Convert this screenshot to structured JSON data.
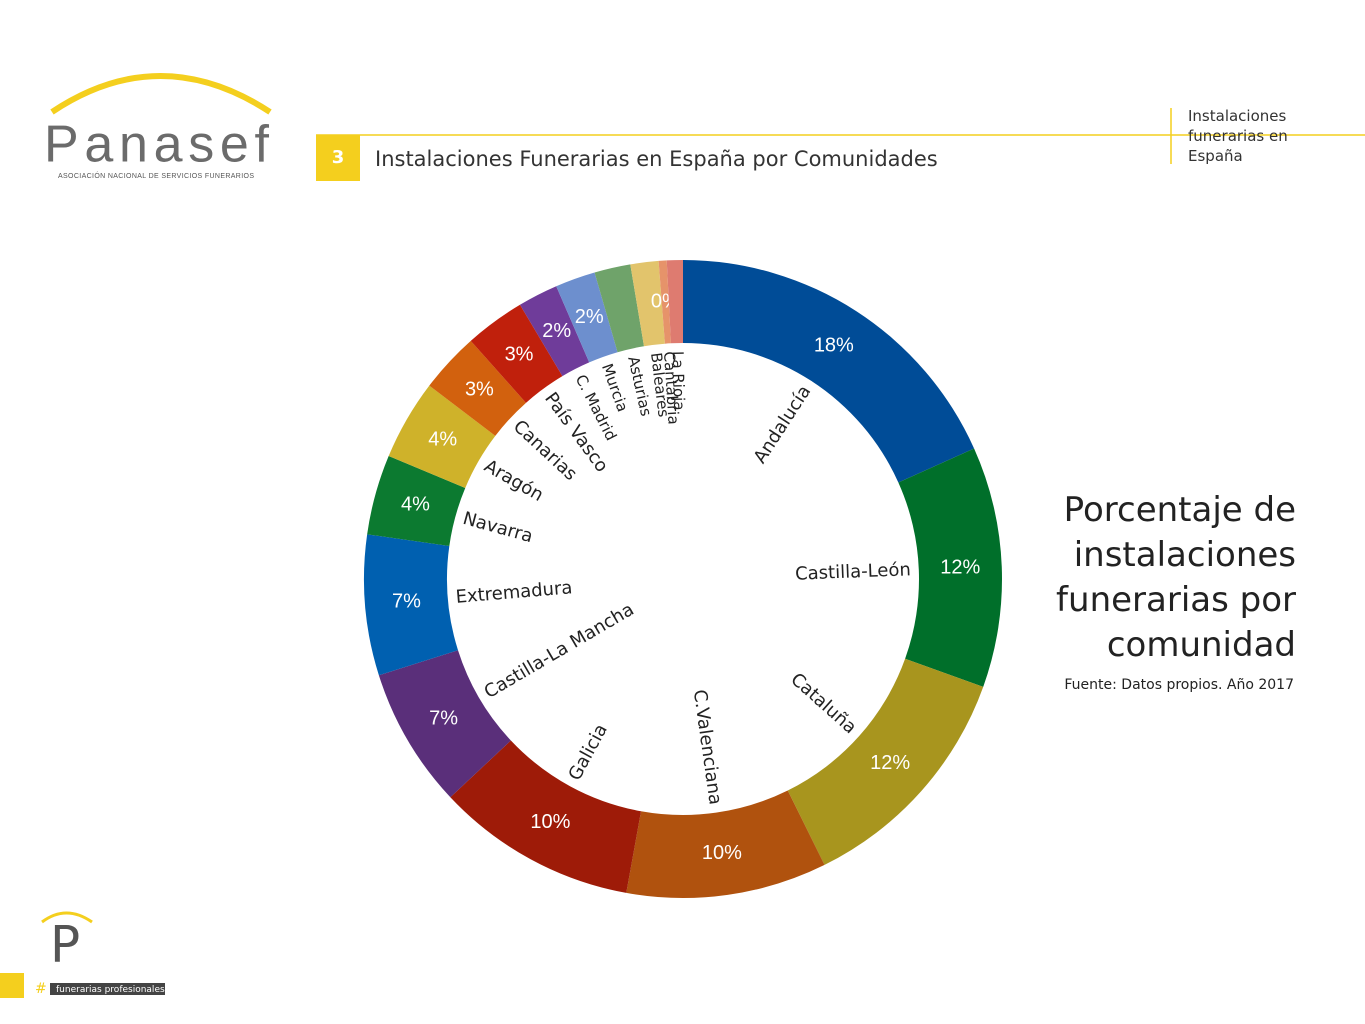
{
  "header": {
    "logo": "Panasef",
    "logo_subtitle": "ASOCIACIÓN NACIONAL DE SERVICIOS FUNERARIOS",
    "section_number": "3",
    "section_title": "Instalaciones Funerarias en España por Comunidades",
    "side_note": "Instalaciones funerarias en España"
  },
  "footer": {
    "logo": "P",
    "hash": "#",
    "tagline": "funerarias profesionales"
  },
  "chart_data": {
    "type": "donut",
    "title": "Porcentaje de instalaciones funerarias por comunidad",
    "source": "Fuente: Datos propios. Año 2017",
    "categories": [
      "Andalucía",
      "Castilla-León",
      "Cataluña",
      "C.Valenciana",
      "Galicia",
      "Castilla-La Mancha",
      "Extremadura",
      "Navarra",
      "Aragón",
      "Canarias",
      "País Vasco",
      "C. Madrid",
      "Murcia",
      "Asturias",
      "Baleares",
      "Cantabria",
      "La Rioja"
    ],
    "values": [
      18,
      12,
      12,
      10,
      10,
      7,
      7,
      4,
      4,
      3,
      3,
      2,
      2,
      1.8,
      1.4,
      0.4,
      0.8
    ],
    "value_labels": [
      "18%",
      "12%",
      "12%",
      "10%",
      "10%",
      "7%",
      "7%",
      "4%",
      "4%",
      "3%",
      "3%",
      "2%",
      "2%",
      null,
      null,
      "0%",
      null
    ],
    "colors": [
      "#004c97",
      "#006f2a",
      "#a8951e",
      "#b0520e",
      "#9e1b08",
      "#5a2f7a",
      "#0060b0",
      "#0c7a30",
      "#cfb22a",
      "#d2610e",
      "#c0200c",
      "#6f3c9a",
      "#6d8fce",
      "#6fa36a",
      "#e2c46c",
      "#e6936a",
      "#de7b70"
    ]
  }
}
